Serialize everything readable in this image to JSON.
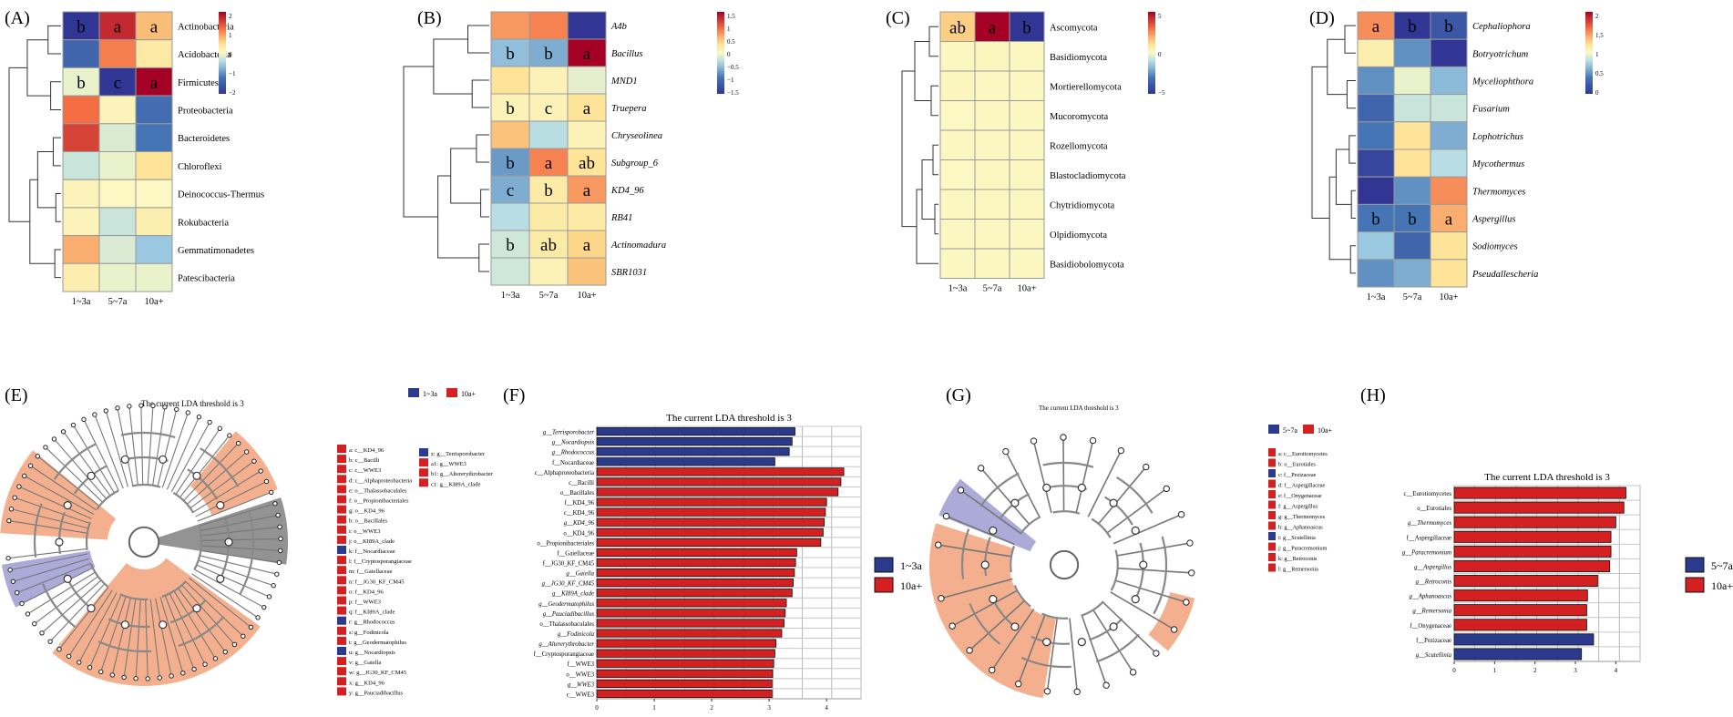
{
  "colors": {
    "heat_low": "#313695",
    "heat_mid": "#fbf8c4",
    "heat_high": "#a50026",
    "series_blue": "#2b3a8c",
    "series_red": "#d42020",
    "clade_orange": "#f2a27a",
    "clade_purple": "#9d9bd1",
    "clade_gray": "#808080"
  },
  "chart_data": [
    {
      "panel": "(A)",
      "type": "heatmap",
      "columns": [
        "1~3a",
        "5~7a",
        "10a+"
      ],
      "rows": [
        "Actinobacteria",
        "Acidobacteria",
        "Firmicutes",
        "Proteobacteria",
        "Bacteroidetes",
        "Chloroflexi",
        "Deinococcus-Thermus",
        "Rokubacteria",
        "Gemmatimonadetes",
        "Patescibacteria"
      ],
      "italic": false,
      "values": [
        [
          -2,
          1.7,
          0.7
        ],
        [
          -1.4,
          1.1,
          0.3
        ],
        [
          -0.1,
          -2,
          2
        ],
        [
          1.2,
          0.1,
          -1.3
        ],
        [
          1.5,
          -0.2,
          -1.2
        ],
        [
          -0.3,
          -0.1,
          0.4
        ],
        [
          0.1,
          0,
          0
        ],
        [
          0.1,
          -0.3,
          0.2
        ],
        [
          0.8,
          -0.2,
          -0.6
        ],
        [
          0.2,
          -0.1,
          -0.1
        ]
      ],
      "letters": [
        [
          "b",
          "a",
          "a"
        ],
        [
          "",
          "",
          ""
        ],
        [
          "b",
          "c",
          "a"
        ],
        [
          "",
          "",
          ""
        ],
        [
          "",
          "",
          ""
        ],
        [
          "",
          "",
          ""
        ],
        [
          "",
          "",
          ""
        ],
        [
          "",
          "",
          ""
        ],
        [
          "",
          "",
          ""
        ],
        [
          "",
          "",
          ""
        ]
      ],
      "scale": {
        "min": -2,
        "max": 2,
        "ticks": [
          "2",
          "1",
          "0",
          "−1",
          "−2"
        ]
      }
    },
    {
      "panel": "(B)",
      "type": "heatmap",
      "columns": [
        "1~3a",
        "5~7a",
        "10a+"
      ],
      "rows": [
        "A4b",
        "Bacillus",
        "MND1",
        "Truepera",
        "Chryseolinea",
        "Subgroup_6",
        "KD4_96",
        "RB41",
        "Actinomadura",
        "SBR1031"
      ],
      "italic": true,
      "values": [
        [
          0.7,
          0.8,
          -1.5
        ],
        [
          -0.5,
          -0.6,
          1.5
        ],
        [
          0.3,
          0.1,
          -0.1
        ],
        [
          0.1,
          0.1,
          0.3
        ],
        [
          0.5,
          -0.3,
          0.1
        ],
        [
          -0.7,
          0.8,
          0.3
        ],
        [
          -0.6,
          0.2,
          0.7
        ],
        [
          -0.3,
          0.2,
          0.2
        ],
        [
          -0.2,
          0.2,
          0.4
        ],
        [
          -0.2,
          0.1,
          0.5
        ]
      ],
      "letters": [
        [
          "",
          "",
          ""
        ],
        [
          "b",
          "b",
          "a"
        ],
        [
          "",
          "",
          ""
        ],
        [
          "b",
          "c",
          "a"
        ],
        [
          "",
          "",
          ""
        ],
        [
          "b",
          "a",
          "ab"
        ],
        [
          "c",
          "b",
          "a"
        ],
        [
          "",
          "",
          ""
        ],
        [
          "b",
          "ab",
          "a"
        ],
        [
          "",
          "",
          ""
        ]
      ],
      "scale": {
        "min": -1.5,
        "max": 1.5,
        "ticks": [
          "1.5",
          "1",
          "0.5",
          "0",
          "−0.5",
          "−1",
          "−1.5"
        ]
      }
    },
    {
      "panel": "(C)",
      "type": "heatmap",
      "columns": [
        "1~3a",
        "5~7a",
        "10a+"
      ],
      "rows": [
        "Ascomycota",
        "Basidiomycota",
        "Mortierellomycota",
        "Mucoromycota",
        "Rozellomycota",
        "Blastocladiomycota",
        "Chytridiomycota",
        "Olpidiomycota",
        "Basidiobolomycota"
      ],
      "italic": false,
      "values": [
        [
          2.2,
          7.5,
          -7.5
        ],
        [
          0.1,
          0.2,
          0.1
        ],
        [
          0.2,
          0.1,
          0.1
        ],
        [
          0,
          0.1,
          0.1
        ],
        [
          0.1,
          0.1,
          0.1
        ],
        [
          0,
          0.1,
          0.1
        ],
        [
          0.1,
          0.1,
          0.1
        ],
        [
          0.1,
          0.1,
          0.1
        ],
        [
          0.1,
          0.1,
          0.1
        ]
      ],
      "letters": [
        [
          "ab",
          "a",
          "b"
        ],
        [
          "",
          "",
          ""
        ],
        [
          "",
          "",
          ""
        ],
        [
          "",
          "",
          ""
        ],
        [
          "",
          "",
          ""
        ],
        [
          "",
          "",
          ""
        ],
        [
          "",
          "",
          ""
        ],
        [
          "",
          "",
          ""
        ],
        [
          "",
          "",
          ""
        ]
      ],
      "scale": {
        "min": -7.5,
        "max": 7.5,
        "ticks": [
          "5",
          "0",
          "−5"
        ]
      }
    },
    {
      "panel": "(D)",
      "type": "heatmap",
      "columns": [
        "1~3a",
        "5~7a",
        "10a+"
      ],
      "rows": [
        "Cephaliophora",
        "Botryotrichum",
        "Myceliophthora",
        "Fusarium",
        "Lophotrichus",
        "Mycothermus",
        "Thermomyces",
        "Aspergillus",
        "Sodiomyces",
        "Pseudallescheria"
      ],
      "italic": true,
      "values": [
        [
          1.5,
          0,
          0.2
        ],
        [
          1.1,
          0.5,
          0
        ],
        [
          0.5,
          0.95,
          0.65
        ],
        [
          0.3,
          0.85,
          0.85
        ],
        [
          0.4,
          1.2,
          0.6
        ],
        [
          0.1,
          1.2,
          0.8
        ],
        [
          0,
          0.5,
          1.5
        ],
        [
          0.4,
          0.4,
          1.4
        ],
        [
          0.7,
          0.3,
          1.2
        ],
        [
          0.5,
          0.6,
          1.2
        ]
      ],
      "letters": [
        [
          "a",
          "b",
          "b"
        ],
        [
          "",
          "",
          ""
        ],
        [
          "",
          "",
          ""
        ],
        [
          "",
          "",
          ""
        ],
        [
          "",
          "",
          ""
        ],
        [
          "",
          "",
          ""
        ],
        [
          "",
          "",
          ""
        ],
        [
          "b",
          "b",
          "a"
        ],
        [
          "",
          "",
          ""
        ],
        [
          "",
          "",
          ""
        ]
      ],
      "scale": {
        "min": 0,
        "max": 2,
        "ticks": [
          "2",
          "1.5",
          "1",
          "0.5",
          "0"
        ]
      }
    },
    {
      "panel": "(E)",
      "type": "other",
      "subtype": "cladogram",
      "title": "The current LDA threshold is 3",
      "legend": [
        {
          "label": "1~3a",
          "color": "blue"
        },
        {
          "label": "10a+",
          "color": "red"
        }
      ],
      "key_col1": [
        {
          "text": "a: c__KD4_96",
          "group": "10a+"
        },
        {
          "text": "b: c__Bacilli",
          "group": "10a+"
        },
        {
          "text": "c: c__WWE3",
          "group": "10a+"
        },
        {
          "text": "d: c__Alphaproteobacteria",
          "group": "10a+"
        },
        {
          "text": "e: o__Thalassobaculales",
          "group": "10a+"
        },
        {
          "text": "f: o__Propionibacteriales",
          "group": "10a+"
        },
        {
          "text": "g: o__KD4_96",
          "group": "10a+"
        },
        {
          "text": "h: o__Bacillales",
          "group": "10a+"
        },
        {
          "text": "i: o__WWE3",
          "group": "10a+"
        },
        {
          "text": "j: o__KI89A_clade",
          "group": "10a+"
        },
        {
          "text": "k: f__Nocardiaceae",
          "group": "1~3a"
        },
        {
          "text": "l: f__Cryptosporangiaceae",
          "group": "10a+"
        },
        {
          "text": "m: f__Gaiellaceae",
          "group": "10a+"
        },
        {
          "text": "n: f__JG30_KF_CM45",
          "group": "10a+"
        },
        {
          "text": "o: f__KD4_96",
          "group": "10a+"
        },
        {
          "text": "p: f__WWE3",
          "group": "10a+"
        },
        {
          "text": "q: f__KI89A_clade",
          "group": "10a+"
        },
        {
          "text": "r: g__Rhodococcus",
          "group": "1~3a"
        },
        {
          "text": "s: g__Fodinicola",
          "group": "10a+"
        },
        {
          "text": "t: g__Geodermatophilus",
          "group": "10a+"
        },
        {
          "text": "u: g__Nocardiopsis",
          "group": "1~3a"
        },
        {
          "text": "v: g__Gaiella",
          "group": "10a+"
        },
        {
          "text": "w: g__JG30_KF_CM45",
          "group": "10a+"
        },
        {
          "text": "x: g__KD4_96",
          "group": "10a+"
        },
        {
          "text": "y: g__Pauciadibacillus",
          "group": "10a+"
        }
      ],
      "key_col2": [
        {
          "text": "z: g__Terrisporobacter",
          "group": "1~3a"
        },
        {
          "text": "a1: g__WWE3",
          "group": "10a+"
        },
        {
          "text": "b1: g__Altererythrobacter",
          "group": "10a+"
        },
        {
          "text": "c1: g__KI89A_clade",
          "group": "10a+"
        }
      ]
    },
    {
      "panel": "(F)",
      "type": "bar",
      "orientation": "horizontal",
      "title": "The current LDA threshold is 3",
      "categories": [
        "g__Terrisporobacter",
        "g__Nocardiopsis",
        "g__Rhodococcus",
        "f__Nocardiaceae",
        "c__Alphaproteobacteria",
        "c__Bacilli",
        "o__Bacillales",
        "f__KD4_96",
        "c__KD4_96",
        "g__KD4_96",
        "o__KD4_96",
        "o__Propionibacteriales",
        "f__Gaiellaceae",
        "f__JG30_KF_CM45",
        "g__Gaiella",
        "g__JG30_KF_CM45",
        "g__KI89A_clade",
        "g__Geodermatophilus",
        "g__Pauciadibacillus",
        "o__Thalassobaculales",
        "g__Fodinicola",
        "g__Altererythrobacter",
        "f__Cryptosporangiaceae",
        "f__WWE3",
        "o__WWE3",
        "g__WWE3",
        "c__WWE3"
      ],
      "values": [
        3.45,
        3.4,
        3.35,
        3.1,
        4.3,
        4.25,
        4.2,
        4.0,
        3.98,
        3.96,
        3.94,
        3.9,
        3.48,
        3.46,
        3.44,
        3.42,
        3.4,
        3.3,
        3.28,
        3.26,
        3.22,
        3.12,
        3.1,
        3.08,
        3.06,
        3.05,
        3.05
      ],
      "groups": [
        "1~3a",
        "1~3a",
        "1~3a",
        "1~3a",
        "10a+",
        "10a+",
        "10a+",
        "10a+",
        "10a+",
        "10a+",
        "10a+",
        "10a+",
        "10a+",
        "10a+",
        "10a+",
        "10a+",
        "10a+",
        "10a+",
        "10a+",
        "10a+",
        "10a+",
        "10a+",
        "10a+",
        "10a+",
        "10a+",
        "10a+",
        "10a+"
      ],
      "xlim": [
        0,
        4.6
      ],
      "xticks": [
        "0",
        "1",
        "2",
        "3",
        "4"
      ],
      "legend": [
        "1~3a",
        "10a+"
      ]
    },
    {
      "panel": "(G)",
      "type": "other",
      "subtype": "cladogram",
      "title": "The current LDA threshold is 3",
      "legend": [
        {
          "label": "5~7a",
          "color": "blue"
        },
        {
          "label": "10a+",
          "color": "red"
        }
      ],
      "key_col1": [
        {
          "text": "a: c__Eurotiomycetes",
          "group": "10a+"
        },
        {
          "text": "b: o__Eurotiales",
          "group": "10a+"
        },
        {
          "text": "c: f__Pezizaceae",
          "group": "5~7a"
        },
        {
          "text": "d: f__Aspergillaceae",
          "group": "10a+"
        },
        {
          "text": "e: f__Onygenaceae",
          "group": "10a+"
        },
        {
          "text": "f: g__Aspergillus",
          "group": "10a+"
        },
        {
          "text": "g: g__Thermomyces",
          "group": "10a+"
        },
        {
          "text": "h: g__Aphanoascus",
          "group": "10a+"
        },
        {
          "text": "i: g__Scutellinia",
          "group": "5~7a"
        },
        {
          "text": "j: g__Paracremonium",
          "group": "10a+"
        },
        {
          "text": "k: g__Retroconis",
          "group": "10a+"
        },
        {
          "text": "l: g__Remersonia",
          "group": "10a+"
        }
      ]
    },
    {
      "panel": "(H)",
      "type": "bar",
      "orientation": "horizontal",
      "title": "The current LDA threshold is 3",
      "categories": [
        "c__Eurotiomycetes",
        "o__Eurotiales",
        "g__Thermomyces",
        "f__Aspergillaceae",
        "g__Paracremonium",
        "g__Aspergillus",
        "g__Retroconis",
        "g__Aphanoascus",
        "g__Remersonia",
        "f__Onygenaceae",
        "f__Pezizaceae",
        "g__Scutellinia"
      ],
      "values": [
        4.25,
        4.2,
        4.0,
        3.88,
        3.88,
        3.85,
        3.55,
        3.3,
        3.28,
        3.28,
        3.45,
        3.15
      ],
      "groups": [
        "10a+",
        "10a+",
        "10a+",
        "10a+",
        "10a+",
        "10a+",
        "10a+",
        "10a+",
        "10a+",
        "10a+",
        "5~7a",
        "5~7a"
      ],
      "xlim": [
        0,
        4.6
      ],
      "xticks": [
        "0",
        "1",
        "2",
        "3",
        "4"
      ],
      "legend": [
        "5~7a",
        "10a+"
      ]
    }
  ]
}
